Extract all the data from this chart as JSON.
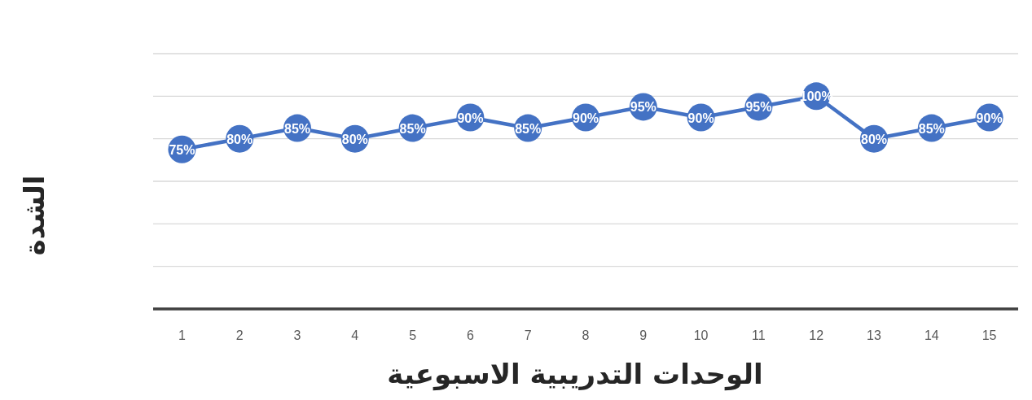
{
  "chart_data": {
    "type": "line",
    "xlabel": "الوحدات التدريبية الاسبوعية",
    "ylabel": "الشدة",
    "categories": [
      "1",
      "2",
      "3",
      "4",
      "5",
      "6",
      "7",
      "8",
      "9",
      "10",
      "11",
      "12",
      "13",
      "14",
      "15"
    ],
    "series": [
      {
        "color": "#4472c4",
        "values": [
          75,
          80,
          85,
          80,
          85,
          90,
          85,
          90,
          95,
          90,
          95,
          100,
          80,
          85,
          90
        ],
        "value_labels": [
          "75%",
          "80%",
          "85%",
          "80%",
          "85%",
          "90%",
          "85%",
          "90%",
          "95%",
          "90%",
          "95%",
          "100%",
          "80%",
          "85%",
          "90%"
        ]
      }
    ],
    "ylim": [
      0,
      120
    ],
    "yticks": [
      {
        "value": 0,
        "label": null
      },
      {
        "value": 20,
        "label": null
      },
      {
        "value": 40,
        "label": null
      },
      {
        "value": 60,
        "label": null
      },
      {
        "value": 80,
        "label": null
      },
      {
        "value": 100,
        "label": null
      },
      {
        "value": 120,
        "label": null
      }
    ],
    "grid": "y",
    "tick_labels": "x",
    "marker": "circle",
    "line_style": "solid"
  }
}
